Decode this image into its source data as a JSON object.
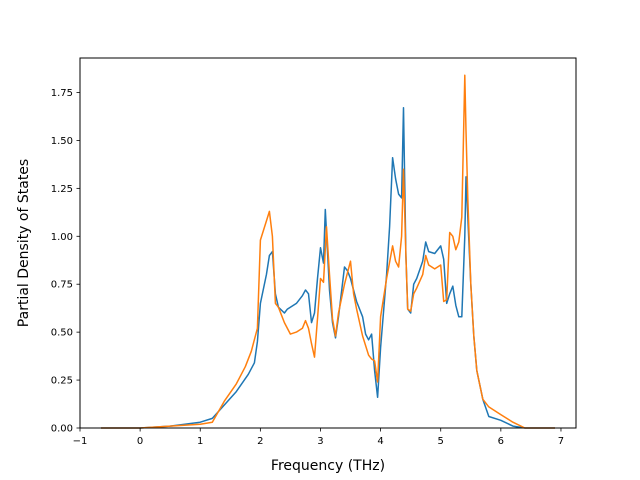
{
  "chart_data": {
    "type": "line",
    "title": "",
    "xlabel": "Frequency (THz)",
    "ylabel": "Partial Density of States",
    "xlim": [
      -1,
      7.25
    ],
    "ylim": [
      0,
      1.93
    ],
    "xticks": [
      -1,
      0,
      1,
      2,
      3,
      4,
      5,
      6,
      7
    ],
    "xtick_labels": [
      "−1",
      "0",
      "1",
      "2",
      "3",
      "4",
      "5",
      "6",
      "7"
    ],
    "yticks": [
      0.0,
      0.25,
      0.5,
      0.75,
      1.0,
      1.25,
      1.5,
      1.75
    ],
    "ytick_labels": [
      "0.00",
      "0.25",
      "0.50",
      "0.75",
      "1.00",
      "1.25",
      "1.50",
      "1.75"
    ],
    "grid": false,
    "legend": null,
    "series": [
      {
        "color": "#1f77b4",
        "x": [
          -0.65,
          0.0,
          0.5,
          1.0,
          1.2,
          1.4,
          1.6,
          1.8,
          1.9,
          1.95,
          2.0,
          2.1,
          2.15,
          2.2,
          2.25,
          2.3,
          2.4,
          2.45,
          2.6,
          2.7,
          2.75,
          2.8,
          2.85,
          2.9,
          2.95,
          3.0,
          3.05,
          3.08,
          3.12,
          3.15,
          3.2,
          3.25,
          3.3,
          3.4,
          3.45,
          3.5,
          3.6,
          3.7,
          3.75,
          3.8,
          3.85,
          3.9,
          3.95,
          4.0,
          4.1,
          4.15,
          4.2,
          4.25,
          4.3,
          4.35,
          4.38,
          4.42,
          4.45,
          4.5,
          4.55,
          4.6,
          4.7,
          4.75,
          4.8,
          4.9,
          5.0,
          5.05,
          5.1,
          5.15,
          5.2,
          5.25,
          5.3,
          5.35,
          5.4,
          5.42,
          5.45,
          5.5,
          5.55,
          5.6,
          5.7,
          5.8,
          6.0,
          6.2,
          6.4,
          6.9
        ],
        "y": [
          0.0,
          0.0,
          0.01,
          0.03,
          0.05,
          0.12,
          0.19,
          0.28,
          0.34,
          0.45,
          0.65,
          0.8,
          0.9,
          0.92,
          0.7,
          0.63,
          0.6,
          0.62,
          0.65,
          0.69,
          0.72,
          0.7,
          0.55,
          0.6,
          0.78,
          0.94,
          0.86,
          1.14,
          0.9,
          0.72,
          0.55,
          0.47,
          0.58,
          0.84,
          0.82,
          0.78,
          0.66,
          0.58,
          0.49,
          0.46,
          0.49,
          0.3,
          0.16,
          0.42,
          0.8,
          1.05,
          1.41,
          1.3,
          1.22,
          1.2,
          1.67,
          0.9,
          0.62,
          0.6,
          0.75,
          0.78,
          0.87,
          0.97,
          0.92,
          0.91,
          0.95,
          0.88,
          0.65,
          0.7,
          0.74,
          0.64,
          0.58,
          0.58,
          1.0,
          1.31,
          1.1,
          0.75,
          0.48,
          0.3,
          0.15,
          0.06,
          0.04,
          0.01,
          0.0,
          0.0
        ]
      },
      {
        "color": "#ff7f0e",
        "x": [
          -0.65,
          0.0,
          0.5,
          1.0,
          1.2,
          1.4,
          1.6,
          1.75,
          1.85,
          1.95,
          2.0,
          2.1,
          2.15,
          2.2,
          2.25,
          2.3,
          2.4,
          2.5,
          2.6,
          2.7,
          2.75,
          2.8,
          2.85,
          2.9,
          2.95,
          3.0,
          3.05,
          3.1,
          3.15,
          3.2,
          3.25,
          3.3,
          3.4,
          3.5,
          3.55,
          3.6,
          3.7,
          3.8,
          3.85,
          3.9,
          3.95,
          4.0,
          4.1,
          4.2,
          4.25,
          4.3,
          4.35,
          4.38,
          4.42,
          4.45,
          4.5,
          4.55,
          4.6,
          4.7,
          4.75,
          4.8,
          4.9,
          5.0,
          5.05,
          5.1,
          5.15,
          5.2,
          5.25,
          5.3,
          5.35,
          5.4,
          5.42,
          5.45,
          5.5,
          5.55,
          5.6,
          5.7,
          5.8,
          6.0,
          6.2,
          6.4,
          6.9
        ],
        "y": [
          0.0,
          0.0,
          0.01,
          0.02,
          0.03,
          0.14,
          0.23,
          0.32,
          0.4,
          0.52,
          0.98,
          1.08,
          1.13,
          1.0,
          0.65,
          0.63,
          0.55,
          0.49,
          0.5,
          0.52,
          0.56,
          0.52,
          0.44,
          0.37,
          0.57,
          0.78,
          0.76,
          1.05,
          0.8,
          0.57,
          0.48,
          0.6,
          0.75,
          0.87,
          0.7,
          0.62,
          0.48,
          0.38,
          0.36,
          0.35,
          0.24,
          0.58,
          0.78,
          0.95,
          0.87,
          0.84,
          1.0,
          1.35,
          0.9,
          0.62,
          0.61,
          0.7,
          0.73,
          0.8,
          0.9,
          0.85,
          0.83,
          0.85,
          0.66,
          0.67,
          1.02,
          1.0,
          0.93,
          0.97,
          1.1,
          1.84,
          1.55,
          1.2,
          0.75,
          0.48,
          0.3,
          0.15,
          0.11,
          0.07,
          0.03,
          0.0,
          0.0
        ]
      }
    ]
  }
}
